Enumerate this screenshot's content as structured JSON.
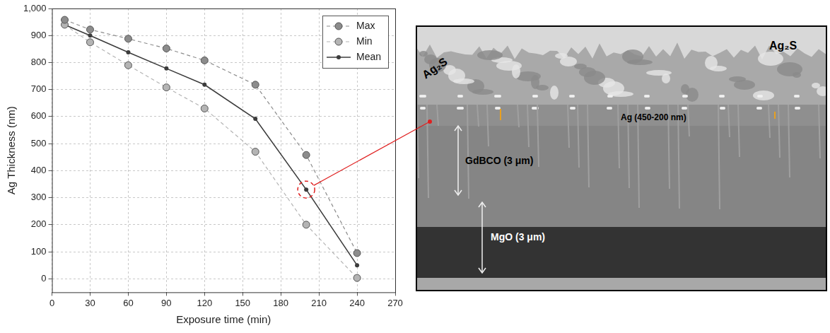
{
  "chart_data": {
    "type": "line",
    "x_label": "Exposure time (min)",
    "y_label": "Ag Thickness (nm)",
    "x": [
      10,
      30,
      60,
      90,
      120,
      160,
      200,
      240
    ],
    "series": [
      {
        "name": "Max",
        "color": "#8c8c8c",
        "marker": "circle",
        "line_style": "dashed",
        "values": [
          958,
          922,
          888,
          852,
          808,
          718,
          458,
          95
        ]
      },
      {
        "name": "Min",
        "color": "#b4b4b4",
        "marker": "circle",
        "line_style": "dashed",
        "values": [
          940,
          875,
          790,
          708,
          630,
          470,
          200,
          3
        ]
      },
      {
        "name": "Mean",
        "color": "#3c3c3c",
        "marker": "circle",
        "line_style": "solid",
        "values": [
          940,
          900,
          838,
          778,
          718,
          592,
          330,
          50
        ]
      }
    ],
    "xlim": [
      0,
      270
    ],
    "xticks": [
      0,
      30,
      60,
      90,
      120,
      150,
      180,
      210,
      240,
      270
    ],
    "ylim": [
      -50,
      1000
    ],
    "yticks": [
      0,
      100,
      200,
      300,
      400,
      500,
      600,
      700,
      800,
      900,
      1000
    ],
    "grid": true,
    "legend": "upper right",
    "annotations": [
      {
        "x": 200,
        "y": 330,
        "marker": "circle",
        "line_style": "dashed",
        "color": "#e02020"
      }
    ]
  },
  "image": {
    "top_labels": [
      "Ag₂S",
      "Ag₂S"
    ],
    "layers": [
      "Ag (450-200 nm)",
      "GdBCO (3 μm)",
      "MgO (3 μm)"
    ]
  }
}
